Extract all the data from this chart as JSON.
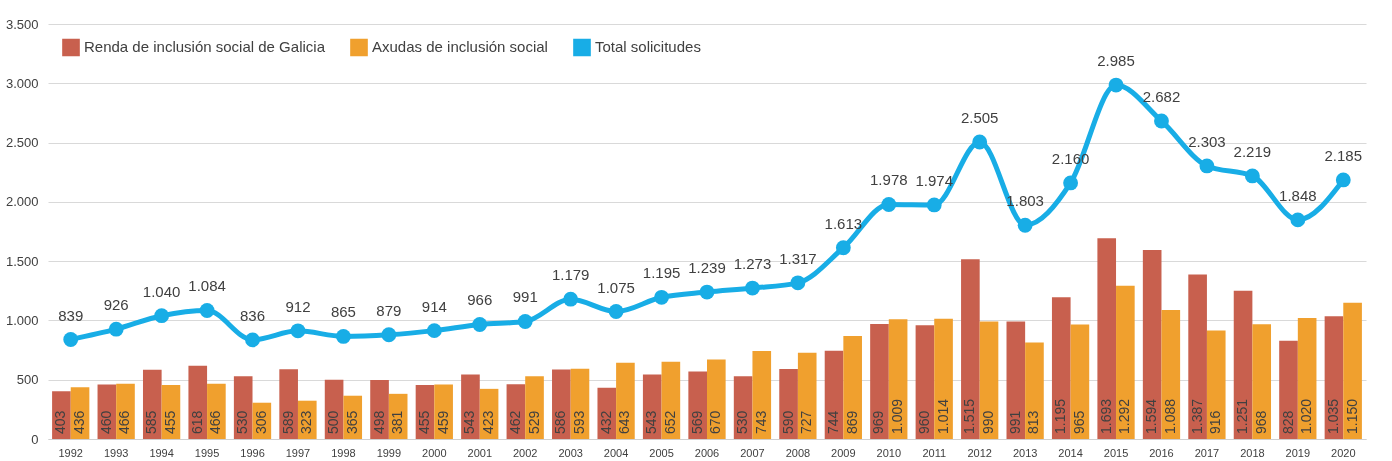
{
  "chart_data": {
    "type": "bar",
    "categories": [
      "1992",
      "1993",
      "1994",
      "1995",
      "1996",
      "1997",
      "1998",
      "1999",
      "2000",
      "2001",
      "2002",
      "2003",
      "2004",
      "2005",
      "2006",
      "2007",
      "2008",
      "2009",
      "2010",
      "2011",
      "2012",
      "2013",
      "2014",
      "2015",
      "2016",
      "2017",
      "2018",
      "2019",
      "2020"
    ],
    "series": [
      {
        "name": "Renda de inclusión social de Galicia",
        "color": "#c8604e",
        "values": [
          403,
          460,
          585,
          618,
          530,
          589,
          500,
          498,
          455,
          543,
          462,
          586,
          432,
          543,
          569,
          530,
          590,
          744,
          969,
          960,
          1515,
          991,
          1195,
          1693,
          1594,
          1387,
          1251,
          828,
          1035
        ],
        "value_labels": [
          "403",
          "460",
          "585",
          "618",
          "530",
          "589",
          "500",
          "498",
          "455",
          "543",
          "462",
          "586",
          "432",
          "543",
          "569",
          "530",
          "590",
          "744",
          "969",
          "960",
          "1.515",
          "991",
          "1.195",
          "1.693",
          "1.594",
          "1.387",
          "1.251",
          "828",
          "1.035"
        ]
      },
      {
        "name": "Axudas de inclusión social",
        "color": "#f0a02e",
        "values": [
          436,
          466,
          455,
          466,
          306,
          323,
          365,
          381,
          459,
          423,
          529,
          593,
          643,
          652,
          670,
          743,
          727,
          869,
          1009,
          1014,
          990,
          813,
          965,
          1292,
          1088,
          916,
          968,
          1020,
          1150
        ],
        "value_labels": [
          "436",
          "466",
          "455",
          "466",
          "306",
          "323",
          "365",
          "381",
          "459",
          "423",
          "529",
          "593",
          "643",
          "652",
          "670",
          "743",
          "727",
          "869",
          "1.009",
          "1.014",
          "990",
          "813",
          "965",
          "1.292",
          "1.088",
          "916",
          "968",
          "1.020",
          "1.150"
        ]
      },
      {
        "name": "Total solicitudes",
        "type": "line",
        "color": "#18ade6",
        "values": [
          839,
          926,
          1040,
          1084,
          836,
          912,
          865,
          879,
          914,
          966,
          991,
          1179,
          1075,
          1195,
          1239,
          1273,
          1317,
          1613,
          1978,
          1974,
          2505,
          1803,
          2160,
          2985,
          2682,
          2303,
          2219,
          1848,
          2185
        ],
        "value_labels": [
          "839",
          "926",
          "1.040",
          "1.084",
          "836",
          "912",
          "865",
          "879",
          "914",
          "966",
          "991",
          "1.179",
          "1.075",
          "1.195",
          "1.239",
          "1.273",
          "1.317",
          "1.613",
          "1.978",
          "1.974",
          "2.505",
          "1.803",
          "2.160",
          "2.985",
          "2.682",
          "2.303",
          "2.219",
          "1.848",
          "2.185"
        ]
      }
    ],
    "ylim": [
      0,
      3500
    ],
    "yticks": [
      0,
      500,
      {
        "value": 1000,
        "label": "1.000"
      },
      {
        "value": 1500,
        "label": "1.500"
      },
      {
        "value": 2000,
        "label": "2.000"
      },
      {
        "value": 2500,
        "label": "2.500"
      },
      {
        "value": 3000,
        "label": "3.000"
      },
      {
        "value": 3500,
        "label": "3.500"
      }
    ],
    "grid": "y",
    "legend": "top left",
    "marker": "circle",
    "line_style": "solid"
  }
}
